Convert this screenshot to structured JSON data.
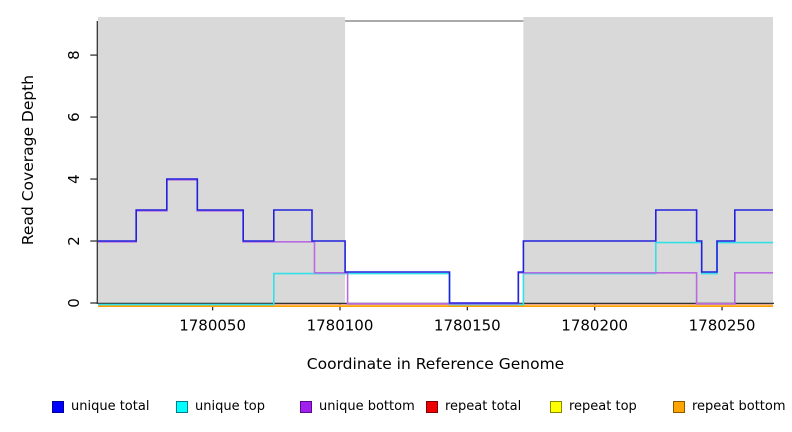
{
  "figure": {
    "background": "#ffffff",
    "plot_background": "#ffffff",
    "shade_color": "#d9d9d9",
    "axis_color": "#333333",
    "text_color": "#000000"
  },
  "axes": {
    "x_label": "Coordinate in Reference Genome",
    "y_label": "Read Coverage Depth",
    "x_tick_labels": [
      "1780050",
      "1780100",
      "1780150",
      "1780200",
      "1780250"
    ],
    "y_tick_labels": [
      "0",
      "2",
      "4",
      "6",
      "8"
    ]
  },
  "chart_data": {
    "type": "line",
    "subtype": "step",
    "title": "",
    "xlabel": "Coordinate in Reference Genome",
    "ylabel": "Read Coverage Depth",
    "xlim": [
      1780005,
      1780270
    ],
    "ylim": [
      0,
      9.1
    ],
    "x_ticks": [
      1780050,
      1780100,
      1780150,
      1780200,
      1780250
    ],
    "y_ticks": [
      0,
      2,
      4,
      6,
      8
    ],
    "grid": false,
    "legend_position": "bottom",
    "shaded_regions": [
      [
        1780005,
        1780102
      ],
      [
        1780172,
        1780270
      ]
    ],
    "gap_top_segment": {
      "x1": 1780102,
      "x2": 1780172,
      "y": 9.1,
      "color": "#8f8f8f"
    },
    "series": [
      {
        "name": "unique total",
        "line_color": "#2222dd",
        "legend_fill": "#0000ff",
        "legend_border": "#000099",
        "points": [
          [
            1780005,
            2
          ],
          [
            1780020,
            3
          ],
          [
            1780032,
            4
          ],
          [
            1780044,
            3
          ],
          [
            1780062,
            2
          ],
          [
            1780074,
            3
          ],
          [
            1780089,
            2
          ],
          [
            1780102,
            1
          ],
          [
            1780143,
            0
          ],
          [
            1780170,
            1
          ],
          [
            1780172,
            2
          ],
          [
            1780224,
            3
          ],
          [
            1780240,
            2
          ],
          [
            1780242,
            1
          ],
          [
            1780248,
            2
          ],
          [
            1780255,
            3
          ]
        ]
      },
      {
        "name": "unique top",
        "line_color": "#33e0e8",
        "legend_fill": "#00ffff",
        "legend_border": "#007b8a",
        "points": [
          [
            1780005,
            0
          ],
          [
            1780074,
            1
          ],
          [
            1780143,
            0
          ],
          [
            1780172,
            1
          ],
          [
            1780224,
            2
          ],
          [
            1780242,
            1
          ],
          [
            1780248,
            2
          ]
        ]
      },
      {
        "name": "unique bottom",
        "line_color": "#b66be0",
        "legend_fill": "#a020f0",
        "legend_border": "#5a0a8a",
        "points": [
          [
            1780005,
            2
          ],
          [
            1780020,
            3
          ],
          [
            1780032,
            4
          ],
          [
            1780044,
            3
          ],
          [
            1780062,
            2
          ],
          [
            1780090,
            1
          ],
          [
            1780103,
            0
          ],
          [
            1780170,
            1
          ],
          [
            1780240,
            0
          ],
          [
            1780255,
            1
          ]
        ]
      },
      {
        "name": "repeat total",
        "line_color": "#d85868",
        "legend_fill": "#ee0000",
        "legend_border": "#7a0000",
        "points": [
          [
            1780005,
            0
          ]
        ]
      },
      {
        "name": "repeat top",
        "line_color": "#efe88a",
        "legend_fill": "#ffff00",
        "legend_border": "#8a8a00",
        "points": [
          [
            1780005,
            0
          ]
        ]
      },
      {
        "name": "repeat bottom",
        "line_color": "#ff9f00",
        "legend_fill": "#ffa500",
        "legend_border": "#8a5a00",
        "points": [
          [
            1780005,
            0
          ]
        ]
      }
    ]
  },
  "legend": {
    "items": [
      {
        "label": "unique total",
        "fill": "#0000ff",
        "border": "#000099"
      },
      {
        "label": "unique top",
        "fill": "#00ffff",
        "border": "#007b8a"
      },
      {
        "label": "unique bottom",
        "fill": "#a020f0",
        "border": "#5a0a8a"
      },
      {
        "label": "repeat total",
        "fill": "#ee0000",
        "border": "#7a0000"
      },
      {
        "label": "repeat top",
        "fill": "#ffff00",
        "border": "#8a8a00"
      },
      {
        "label": "repeat bottom",
        "fill": "#ffa500",
        "border": "#8a5a00"
      }
    ]
  }
}
